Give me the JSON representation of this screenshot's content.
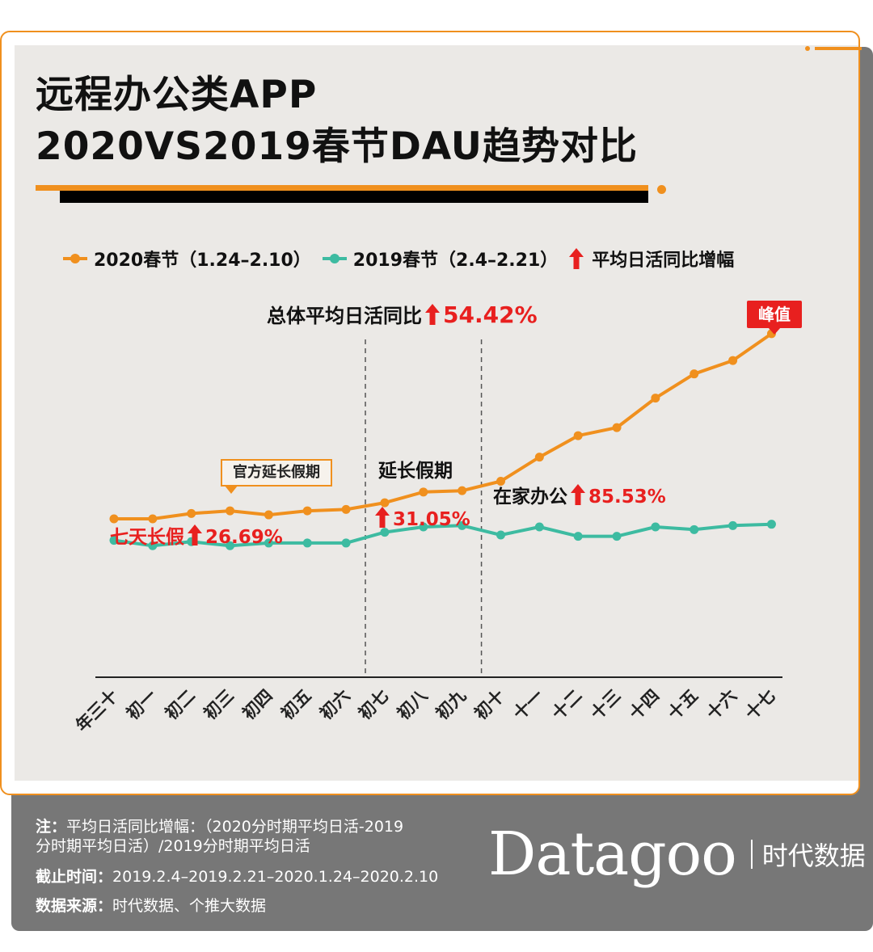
{
  "title": {
    "line1": "远程办公类APP",
    "line2": "2020VS2019春节DAU趋势对比"
  },
  "legend": {
    "series_2020": "2020春节（1.24–2.10）",
    "series_2019": "2019春节（2.4–2.21）",
    "arrow_meaning": "平均日活同比增幅"
  },
  "colors": {
    "accent_orange": "#f0901e",
    "teal": "#3dbba1",
    "red": "#e8201f",
    "panel_bg": "#ebe9e6",
    "footer_bg": "#777777"
  },
  "annotations": {
    "overall_label": "总体平均日活同比",
    "overall_value": "54.42%",
    "seven_day_label": "七天长假",
    "seven_day_value": "26.69%",
    "extended_label": "延长假期",
    "extended_value": "31.05%",
    "home_label": "在家办公",
    "home_value": "85.53%",
    "callout_official": "官方延长假期",
    "peak_label": "峰值"
  },
  "chart_data": {
    "type": "line",
    "categories": [
      "年三十",
      "初一",
      "初二",
      "初三",
      "初四",
      "初五",
      "初六",
      "初七",
      "初八",
      "初九",
      "初十",
      "十一",
      "十二",
      "十三",
      "十四",
      "十五",
      "十六",
      "十七"
    ],
    "series": [
      {
        "name": "2020春节（1.24–2.10）",
        "color": "#f0901e",
        "values": [
          19,
          19,
          21,
          22,
          20.5,
          22,
          22.5,
          25,
          29,
          29.5,
          33,
          42,
          50,
          53,
          64,
          73,
          78,
          88
        ]
      },
      {
        "name": "2019春节（2.4–2.21）",
        "color": "#3dbba1",
        "values": [
          11,
          9,
          10.5,
          9,
          10,
          10,
          10,
          14,
          16,
          16.5,
          13,
          16,
          12.5,
          12.5,
          16,
          15,
          16.5,
          17
        ]
      }
    ],
    "ylim": [
      -40,
      100
    ],
    "yaxis_shown": false,
    "grid": false,
    "period_dividers_after": [
      "初六",
      "初九"
    ],
    "legend_position": "top"
  },
  "footer": {
    "note_label": "注：",
    "note_text_1": "平均日活同比增幅：（2020分时期平均日活-2019",
    "note_text_2": "分时期平均日活）/2019分时期平均日活",
    "cutoff_label": "截止时间：",
    "cutoff_value": "2019.2.4–2019.2.21–2020.1.24–2020.2.10",
    "source_label": "数据来源：",
    "source_value": "时代数据、个推大数据",
    "brand_name": "Datagoo",
    "brand_sub": "时代数据"
  }
}
